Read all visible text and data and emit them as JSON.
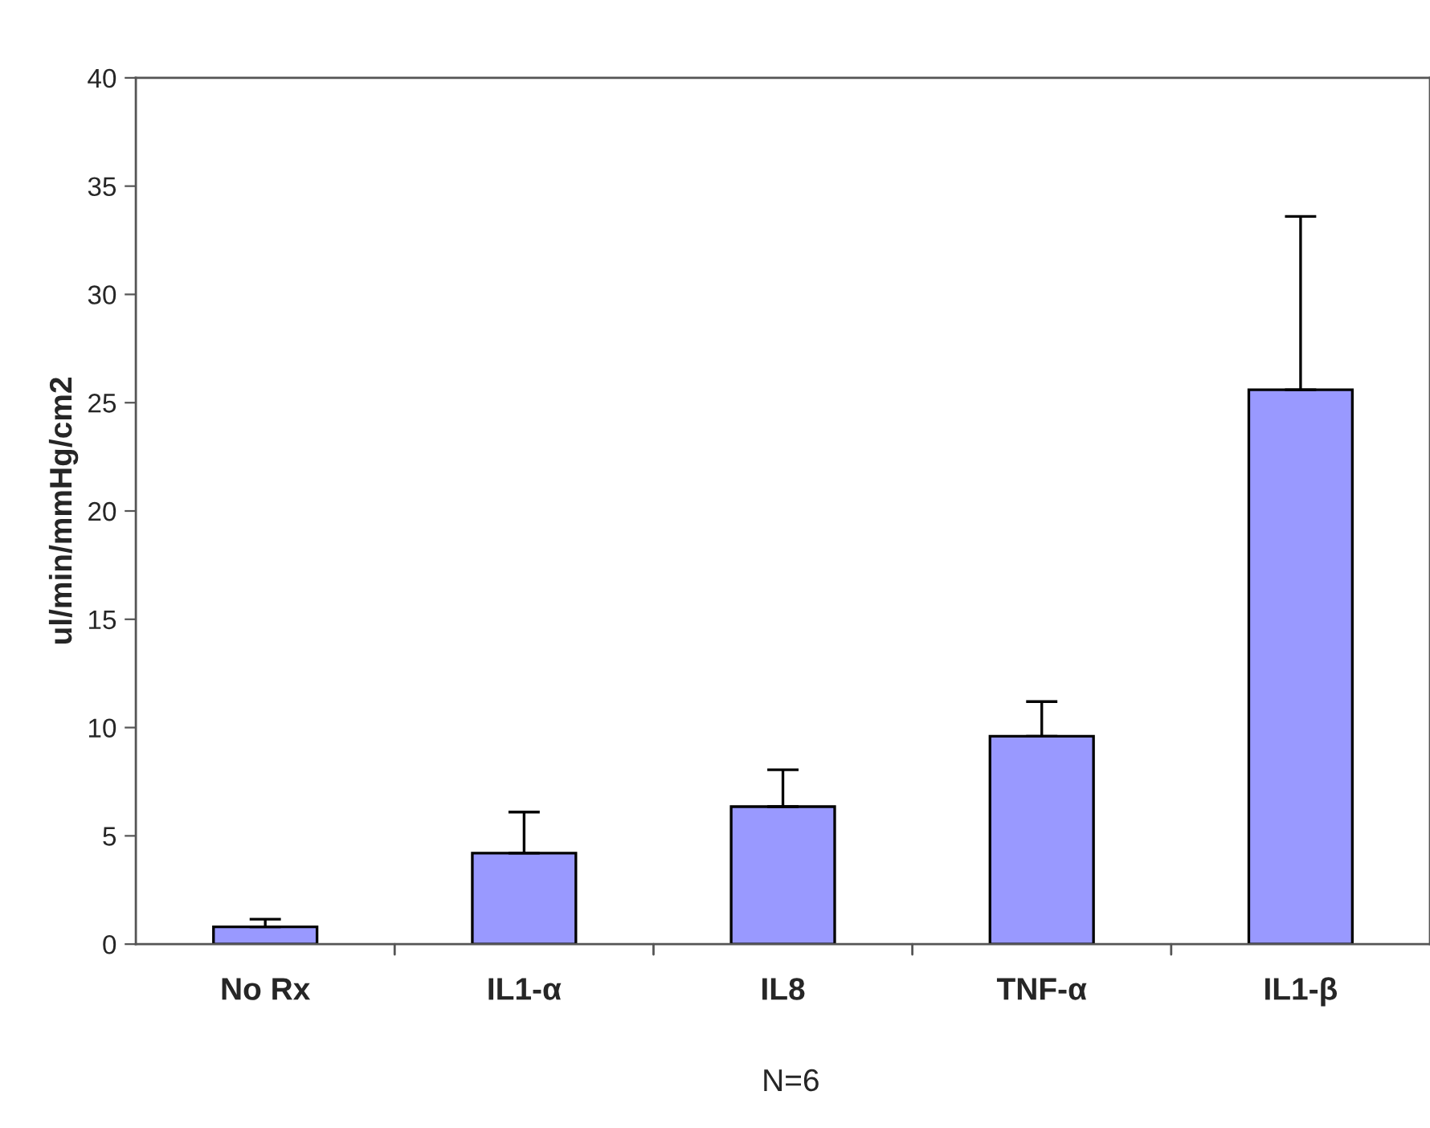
{
  "chart_data": {
    "type": "bar",
    "ylabel": "ul/min/mmHg/cm2",
    "categories": [
      "No Rx",
      "IL1-α",
      "IL8",
      "TNF-α",
      "IL1-β"
    ],
    "values": [
      0.8,
      4.2,
      6.35,
      9.6,
      25.6
    ],
    "errors": [
      [
        0.8,
        1.15
      ],
      [
        4.2,
        6.1
      ],
      [
        6.35,
        8.05
      ],
      [
        9.6,
        11.2
      ],
      [
        25.6,
        33.6
      ]
    ],
    "color": "#9999ff",
    "ylim": [
      0,
      40
    ],
    "yticks": [
      0,
      5,
      10,
      15,
      20,
      25,
      30,
      35,
      40
    ],
    "annotations": [
      "N=6"
    ]
  }
}
